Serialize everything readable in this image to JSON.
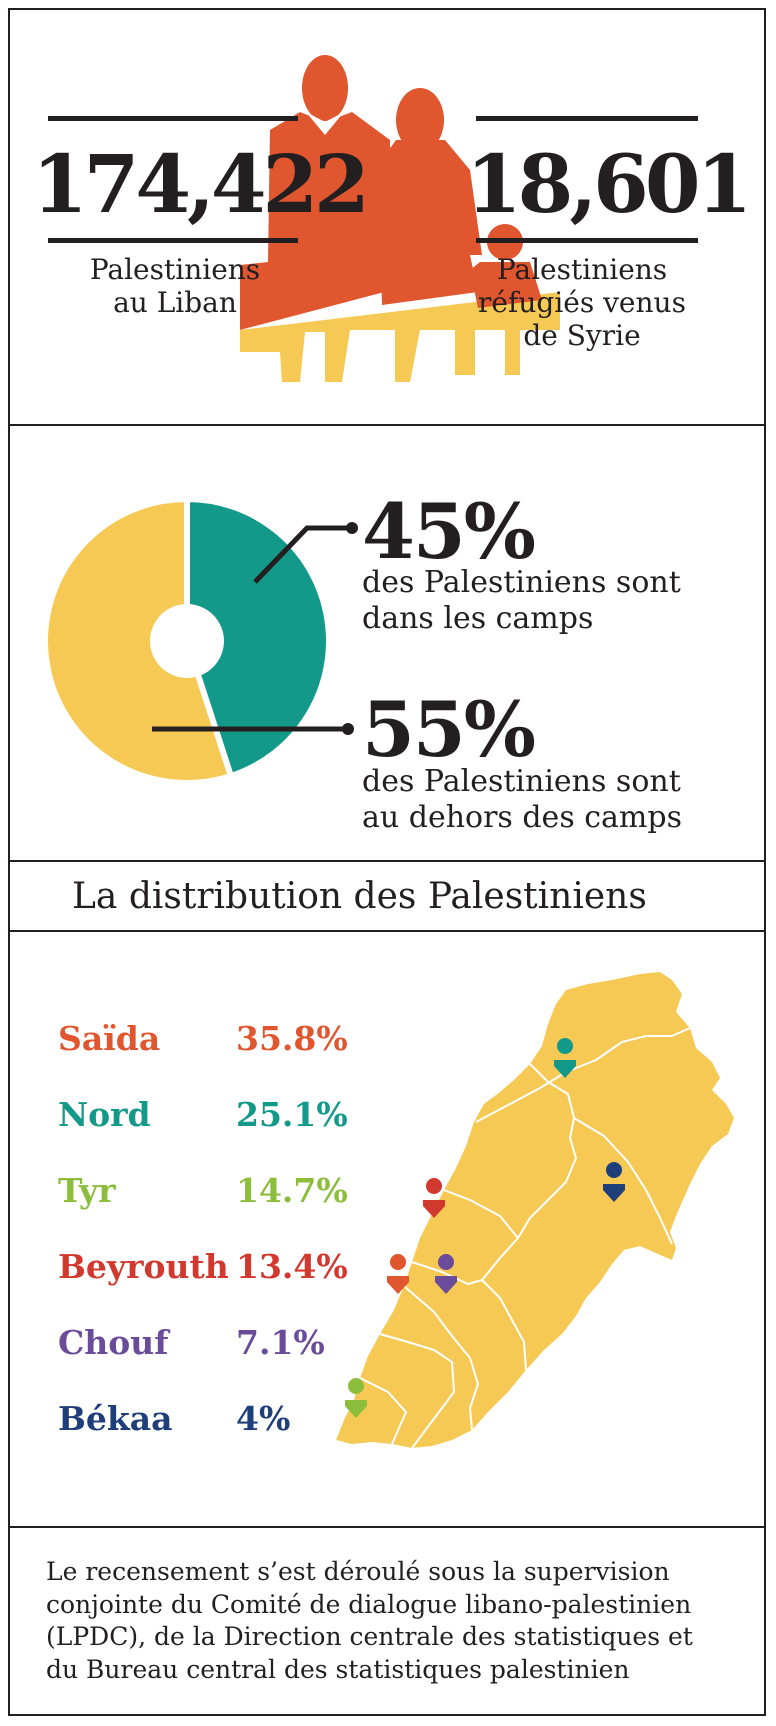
{
  "header": {
    "stat_left": {
      "value": "174,422",
      "caption": [
        "Palestiniens",
        "au Liban"
      ]
    },
    "stat_right": {
      "value": "18,601",
      "caption": [
        "Palestiniens",
        "réfugiés venus",
        "de Syrie"
      ]
    }
  },
  "chart_data": {
    "type": "pie",
    "categories": [
      "des Palestiniens sont dans les camps",
      "des Palestiniens sont au dehors des camps"
    ],
    "values": [
      45,
      55
    ],
    "labels": [
      "45%",
      "55%"
    ],
    "descriptions": [
      [
        "des Palestiniens sont",
        "dans les camps"
      ],
      [
        "des Palestiniens sont",
        "au dehors des camps"
      ]
    ],
    "colors": [
      "#12998a",
      "#f6c955"
    ]
  },
  "distribution": {
    "title": "La distribution des Palestiniens",
    "regions": [
      {
        "name": "Saïda",
        "value": "35.8%",
        "color": "#e0562f"
      },
      {
        "name": "Nord",
        "value": "25.1%",
        "color": "#12998a"
      },
      {
        "name": "Tyr",
        "value": "14.7%",
        "color": "#8cbd3b"
      },
      {
        "name": "Beyrouth",
        "value": "13.4%",
        "color": "#d2392e"
      },
      {
        "name": "Chouf",
        "value": "7.1%",
        "color": "#6b4c9a"
      },
      {
        "name": "Békaa",
        "value": "4%",
        "color": "#1f3f7a"
      }
    ],
    "map_color": "#f6c955"
  },
  "footnote": {
    "lines": [
      "Le recensement s’est déroulé sous la supervision",
      "conjointe du Comité de dialogue libano-palestinien",
      "(LPDC), de la Direction centrale des statistiques et",
      "du Bureau central des statistiques palestinien"
    ]
  },
  "colors": {
    "orange": "#e0562f",
    "yellow": "#f6c955",
    "teal": "#12998a",
    "ink": "#231f20"
  }
}
